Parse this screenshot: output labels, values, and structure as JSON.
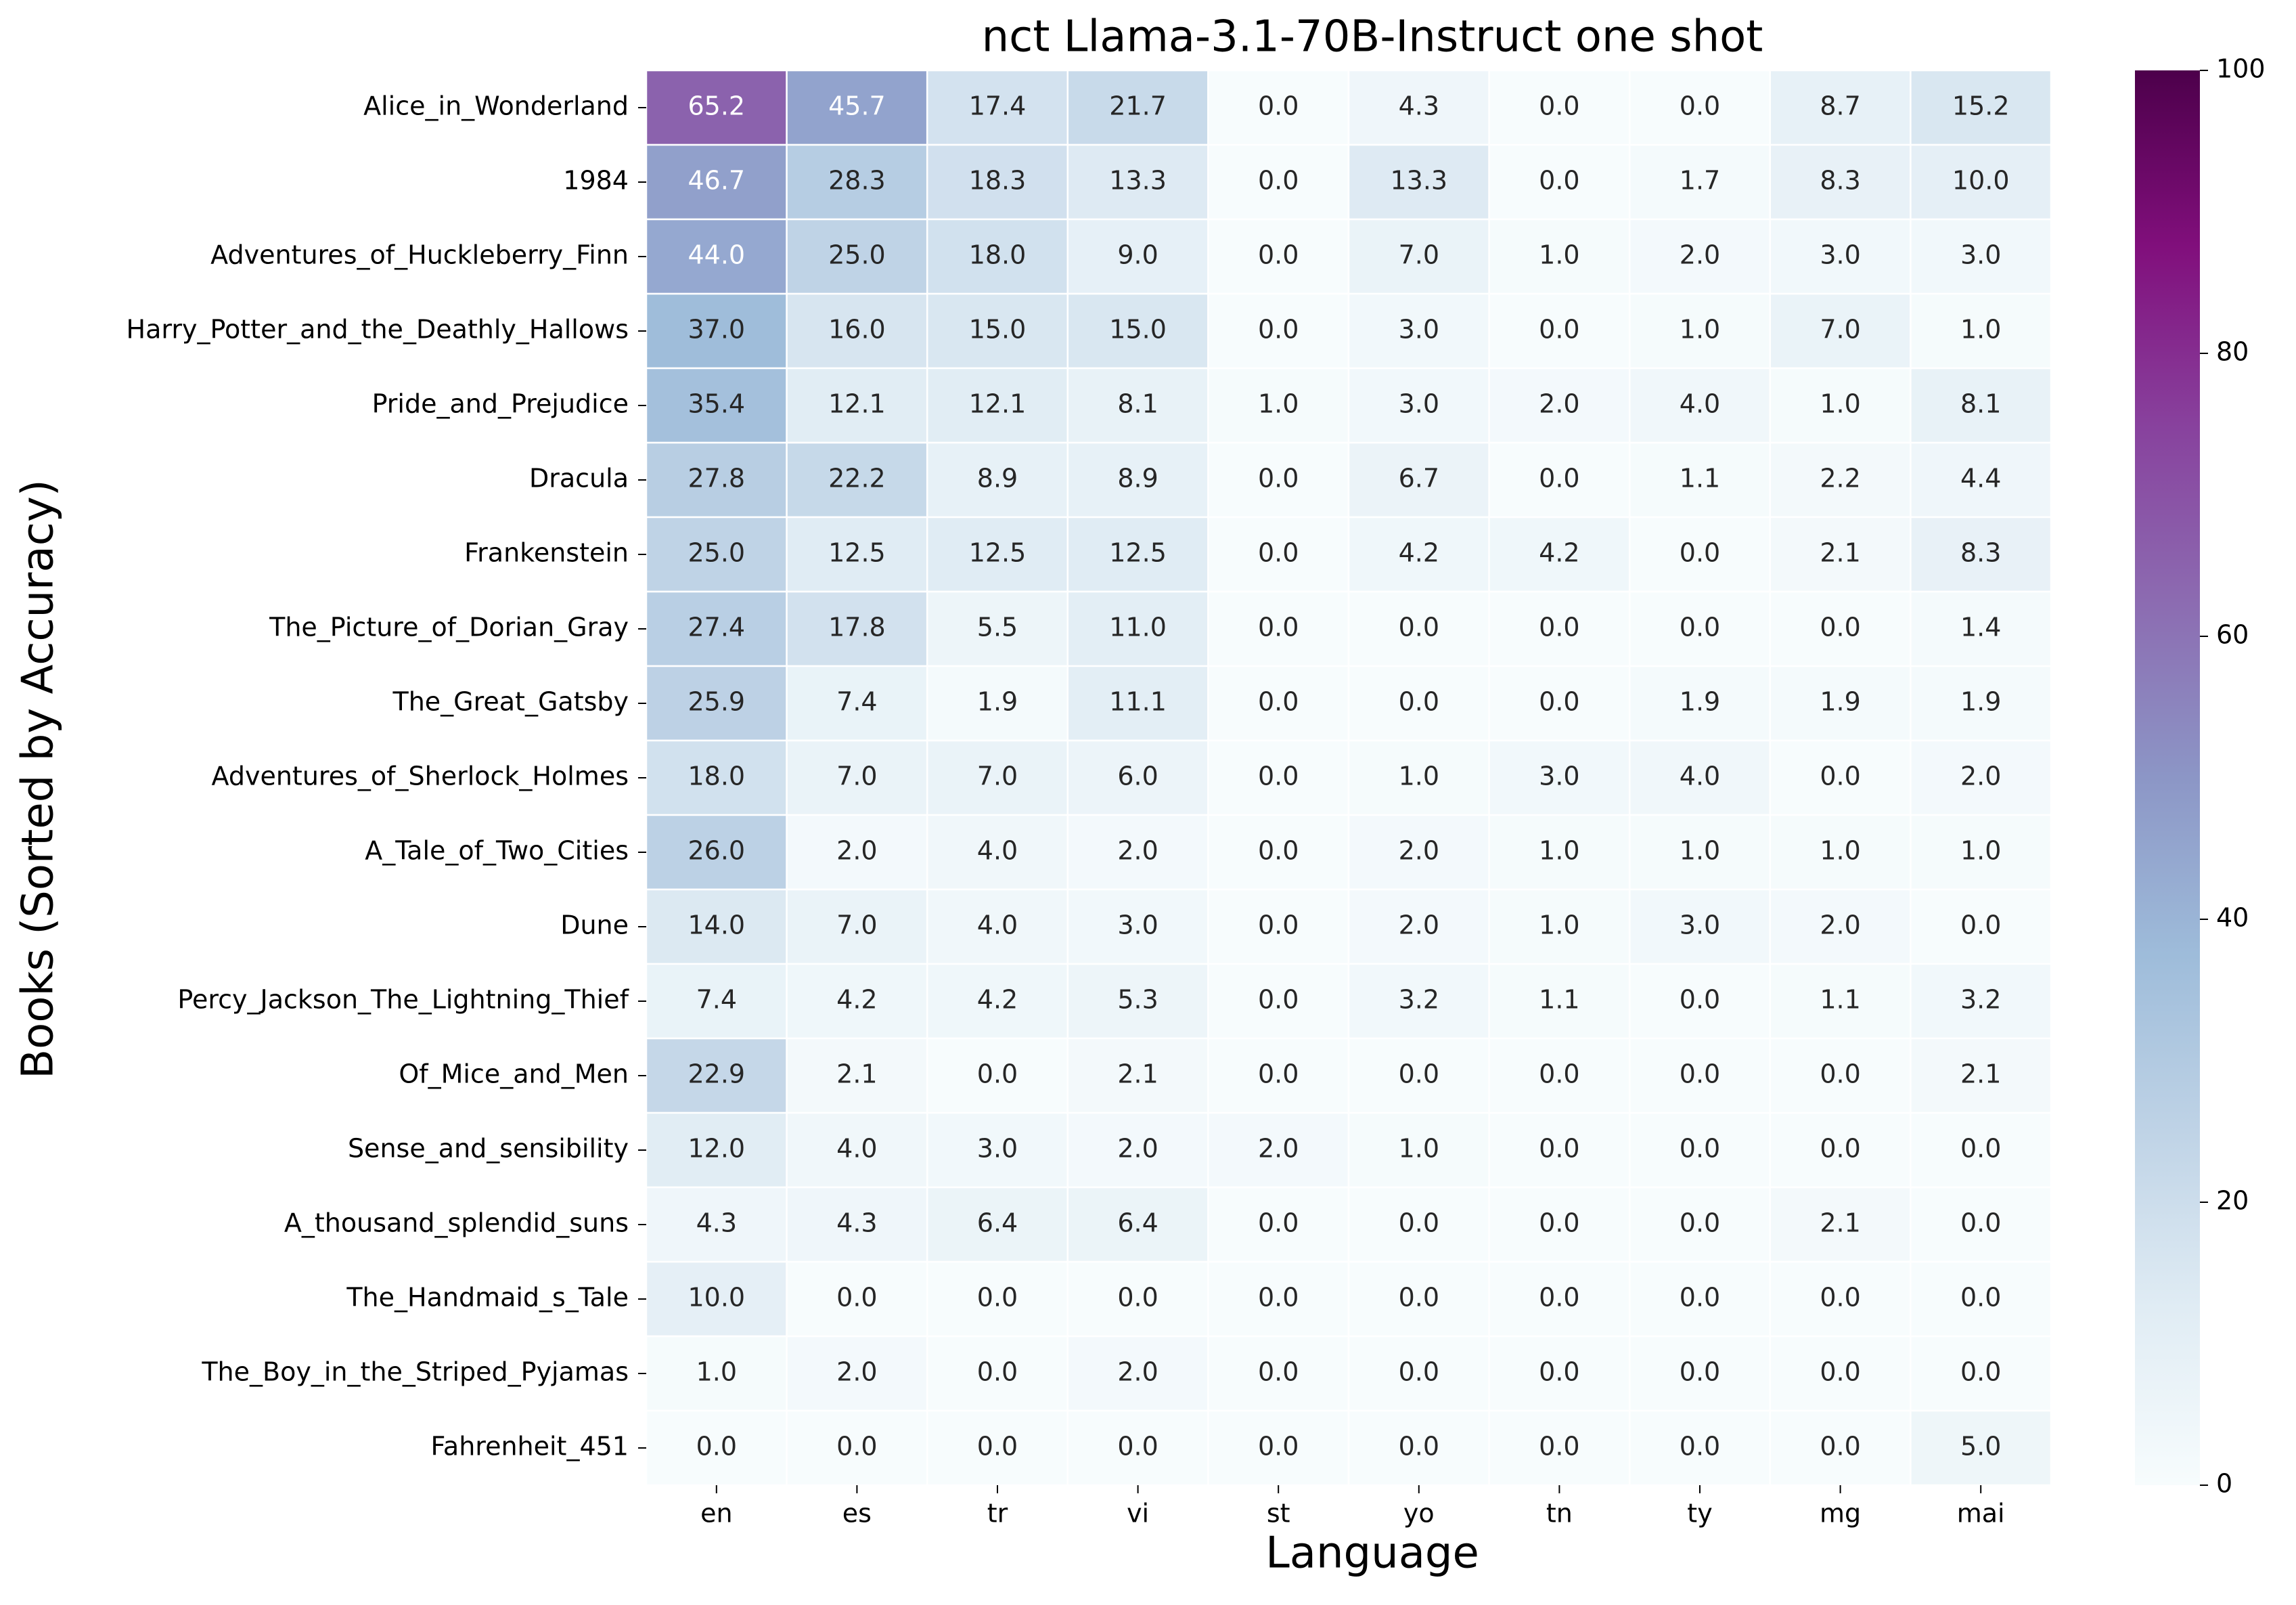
{
  "chart_data": {
    "type": "heatmap",
    "title": "nct Llama-3.1-70B-Instruct one shot",
    "xlabel": "Language",
    "ylabel": "Books (Sorted by Accuracy)",
    "x": [
      "en",
      "es",
      "tr",
      "vi",
      "st",
      "yo",
      "tn",
      "ty",
      "mg",
      "mai"
    ],
    "y": [
      "Alice_in_Wonderland",
      "1984",
      "Adventures_of_Huckleberry_Finn",
      "Harry_Potter_and_the_Deathly_Hallows",
      "Pride_and_Prejudice",
      "Dracula",
      "Frankenstein",
      "The_Picture_of_Dorian_Gray",
      "The_Great_Gatsby",
      "Adventures_of_Sherlock_Holmes",
      "A_Tale_of_Two_Cities",
      "Dune",
      "Percy_Jackson_The_Lightning_Thief",
      "Of_Mice_and_Men",
      "Sense_and_sensibility",
      "A_thousand_splendid_suns",
      "The_Handmaid_s_Tale",
      "The_Boy_in_the_Striped_Pyjamas",
      "Fahrenheit_451"
    ],
    "values": [
      [
        65.2,
        45.7,
        17.4,
        21.7,
        0.0,
        4.3,
        0.0,
        0.0,
        8.7,
        15.2
      ],
      [
        46.7,
        28.3,
        18.3,
        13.3,
        0.0,
        13.3,
        0.0,
        1.7,
        8.3,
        10.0
      ],
      [
        44.0,
        25.0,
        18.0,
        9.0,
        0.0,
        7.0,
        1.0,
        2.0,
        3.0,
        3.0
      ],
      [
        37.0,
        16.0,
        15.0,
        15.0,
        0.0,
        3.0,
        0.0,
        1.0,
        7.0,
        1.0
      ],
      [
        35.4,
        12.1,
        12.1,
        8.1,
        1.0,
        3.0,
        2.0,
        4.0,
        1.0,
        8.1
      ],
      [
        27.8,
        22.2,
        8.9,
        8.9,
        0.0,
        6.7,
        0.0,
        1.1,
        2.2,
        4.4
      ],
      [
        25.0,
        12.5,
        12.5,
        12.5,
        0.0,
        4.2,
        4.2,
        0.0,
        2.1,
        8.3
      ],
      [
        27.4,
        17.8,
        5.5,
        11.0,
        0.0,
        0.0,
        0.0,
        0.0,
        0.0,
        1.4
      ],
      [
        25.9,
        7.4,
        1.9,
        11.1,
        0.0,
        0.0,
        0.0,
        1.9,
        1.9,
        1.9
      ],
      [
        18.0,
        7.0,
        7.0,
        6.0,
        0.0,
        1.0,
        3.0,
        4.0,
        0.0,
        2.0
      ],
      [
        26.0,
        2.0,
        4.0,
        2.0,
        0.0,
        2.0,
        1.0,
        1.0,
        1.0,
        1.0
      ],
      [
        14.0,
        7.0,
        4.0,
        3.0,
        0.0,
        2.0,
        1.0,
        3.0,
        2.0,
        0.0
      ],
      [
        7.4,
        4.2,
        4.2,
        5.3,
        0.0,
        3.2,
        1.1,
        0.0,
        1.1,
        3.2
      ],
      [
        22.9,
        2.1,
        0.0,
        2.1,
        0.0,
        0.0,
        0.0,
        0.0,
        0.0,
        2.1
      ],
      [
        12.0,
        4.0,
        3.0,
        2.0,
        2.0,
        1.0,
        0.0,
        0.0,
        0.0,
        0.0
      ],
      [
        4.3,
        4.3,
        6.4,
        6.4,
        0.0,
        0.0,
        0.0,
        0.0,
        2.1,
        0.0
      ],
      [
        10.0,
        0.0,
        0.0,
        0.0,
        0.0,
        0.0,
        0.0,
        0.0,
        0.0,
        0.0
      ],
      [
        1.0,
        2.0,
        0.0,
        2.0,
        0.0,
        0.0,
        0.0,
        0.0,
        0.0,
        0.0
      ],
      [
        0.0,
        0.0,
        0.0,
        0.0,
        0.0,
        0.0,
        0.0,
        0.0,
        0.0,
        5.0
      ]
    ],
    "value_format": "0.0",
    "colorscale": {
      "name": "BuPu",
      "vmin": 0,
      "vmax": 100,
      "ticks": [
        0,
        20,
        40,
        60,
        80,
        100
      ],
      "stops": [
        "#f7fcfd",
        "#e0ecf4",
        "#bfd3e6",
        "#9ebcda",
        "#8c96c6",
        "#8c6bb1",
        "#88419d",
        "#810f7c",
        "#4d004b"
      ]
    },
    "annotation_colors": {
      "dark": "#262626",
      "light": "#ffffff"
    },
    "grid": false,
    "legend": "colorbar-right"
  }
}
